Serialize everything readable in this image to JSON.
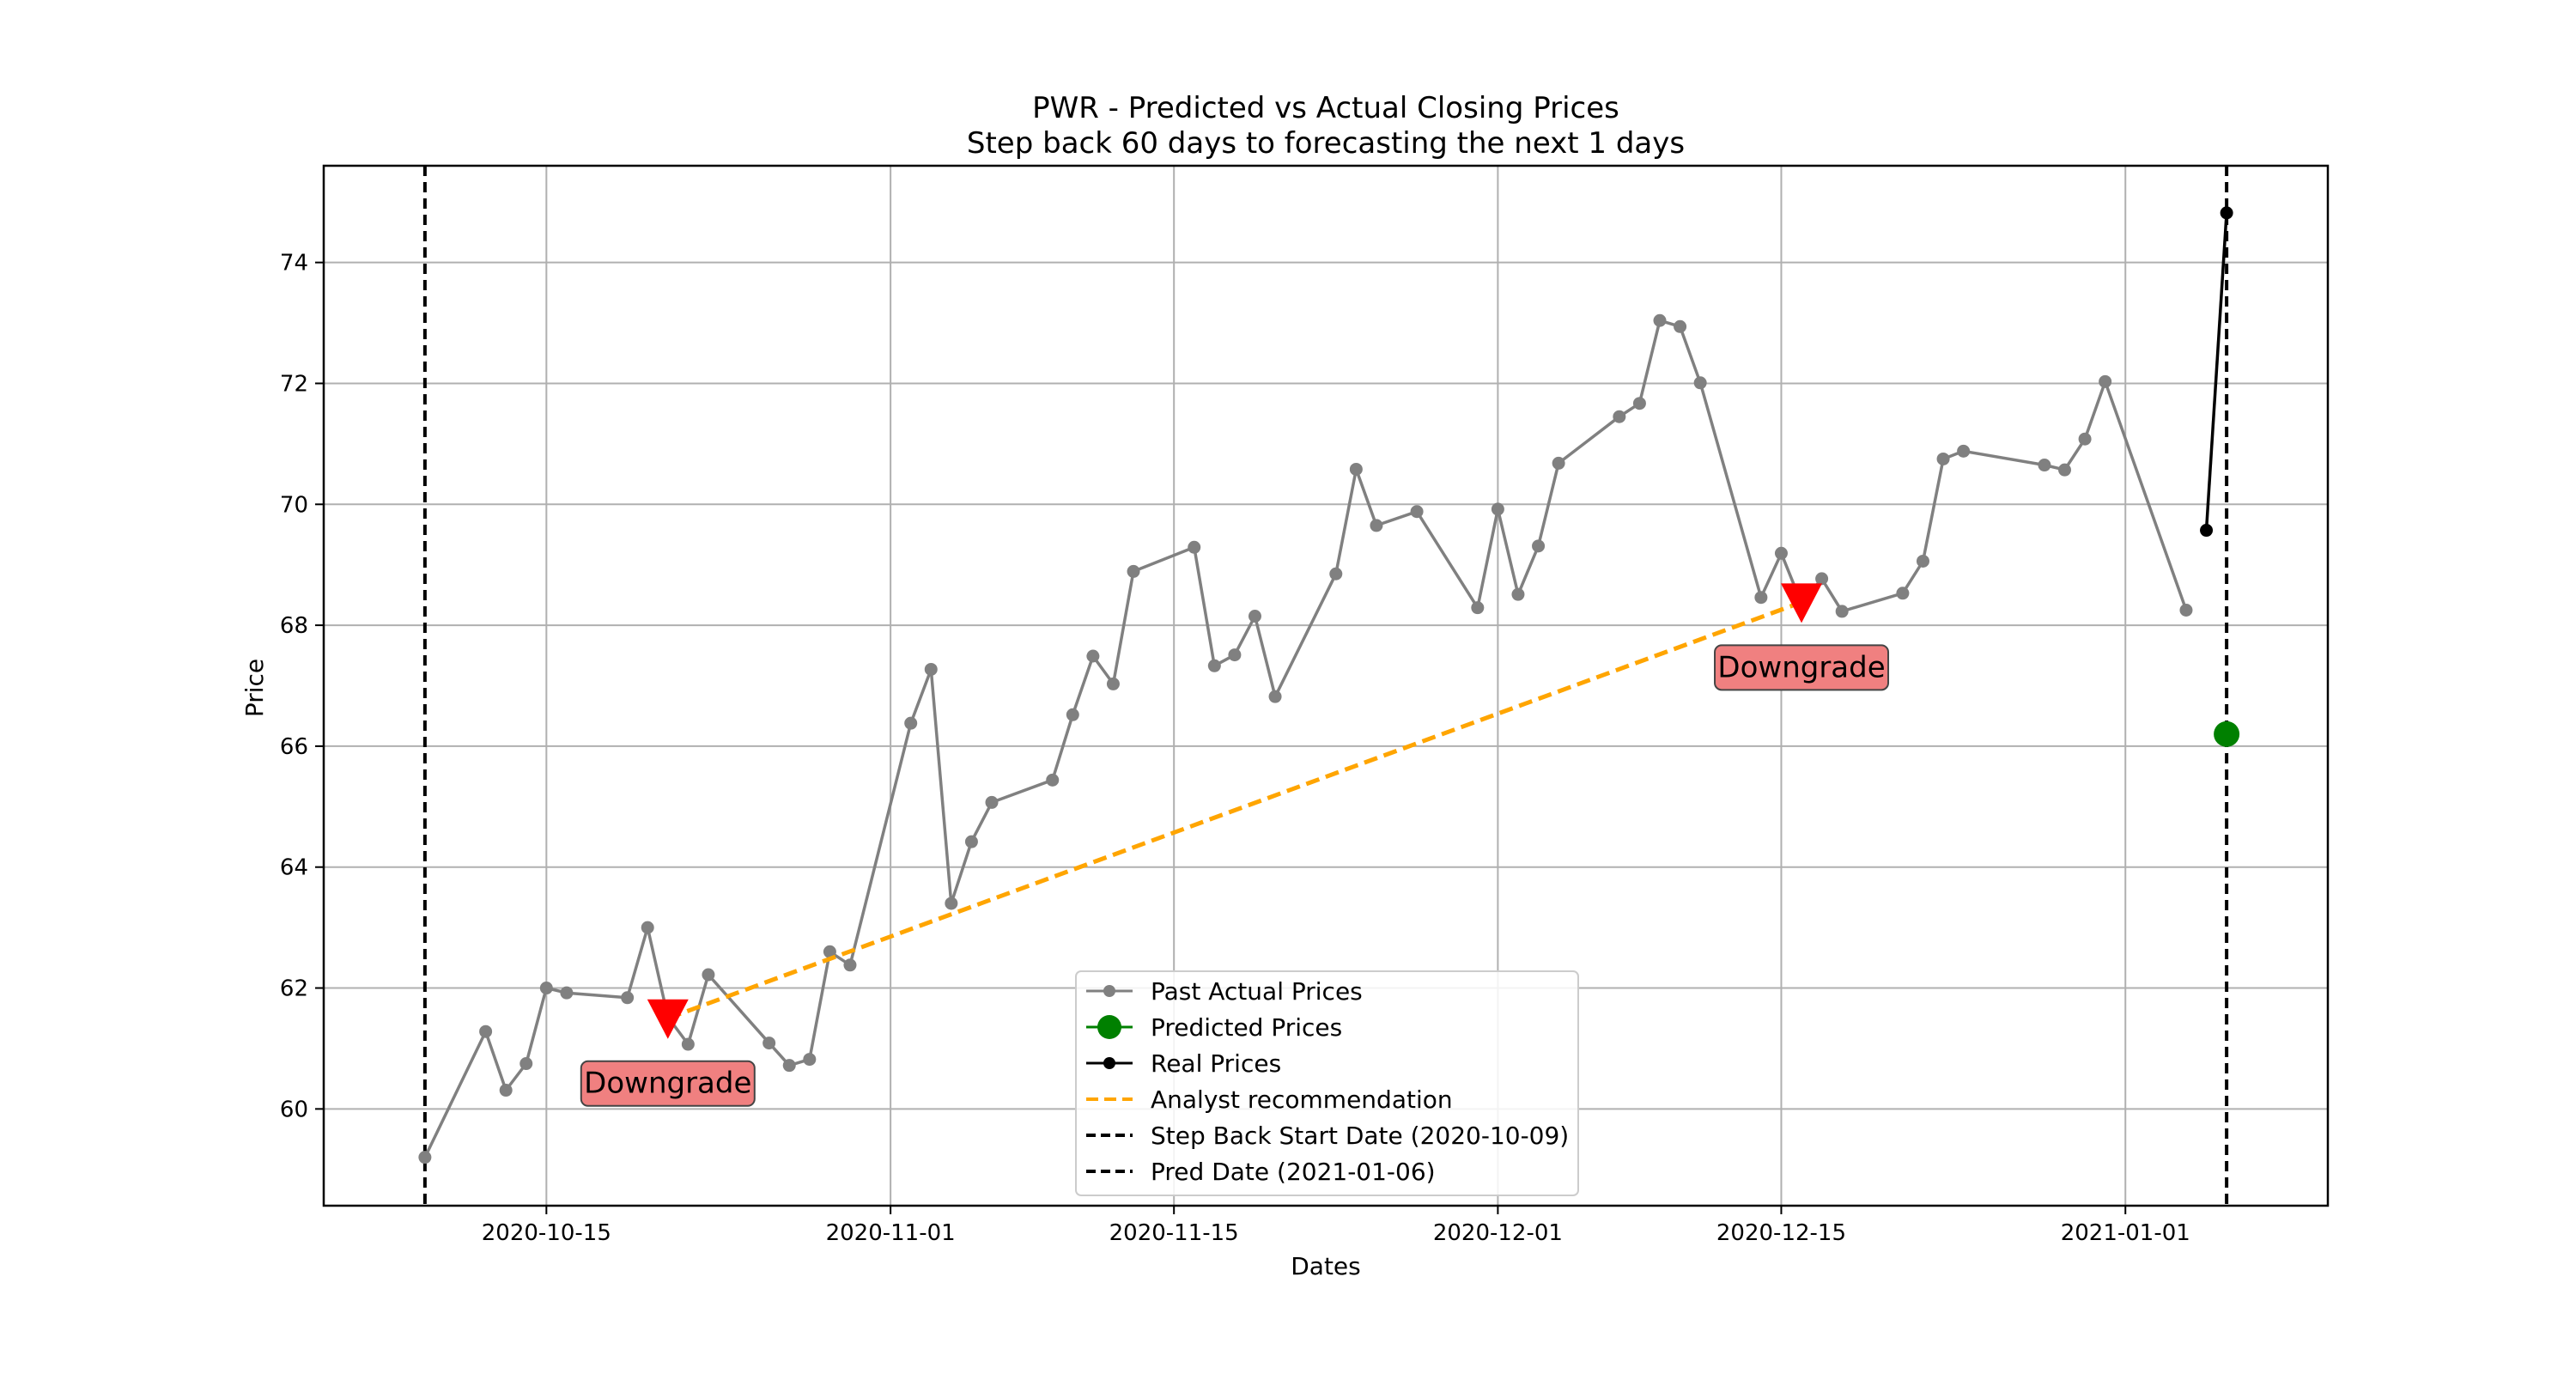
{
  "chart_data": {
    "type": "line",
    "title": "PWR - Predicted vs Actual Closing Prices",
    "subtitle": "Step back 60 days to forecasting the next 1 days",
    "xlabel": "Dates",
    "ylabel": "Price",
    "xlim": [
      "2020-10-04",
      "2021-01-11"
    ],
    "ylim": [
      58.4,
      75.6
    ],
    "grid": true,
    "x_tick_labels": [
      "2020-10-15",
      "2020-11-01",
      "2020-11-15",
      "2020-12-01",
      "2020-12-15",
      "2021-01-01"
    ],
    "y_tick_labels": [
      "60",
      "62",
      "64",
      "66",
      "68",
      "70",
      "72",
      "74"
    ],
    "legend_placement": "lower-center",
    "colors": {
      "past": "#808080",
      "predicted": "#008000",
      "real": "#000000",
      "analyst": "#FFA500",
      "marker": "#FF0000",
      "annotation_bg": "#F08080"
    },
    "series": [
      {
        "name": "Past Actual Prices",
        "x": [
          "2020-10-09",
          "2020-10-12",
          "2020-10-13",
          "2020-10-14",
          "2020-10-15",
          "2020-10-16",
          "2020-10-19",
          "2020-10-20",
          "2020-10-21",
          "2020-10-22",
          "2020-10-23",
          "2020-10-26",
          "2020-10-27",
          "2020-10-28",
          "2020-10-29",
          "2020-10-30",
          "2020-11-02",
          "2020-11-03",
          "2020-11-04",
          "2020-11-05",
          "2020-11-06",
          "2020-11-09",
          "2020-11-10",
          "2020-11-11",
          "2020-11-12",
          "2020-11-13",
          "2020-11-16",
          "2020-11-17",
          "2020-11-18",
          "2020-11-19",
          "2020-11-20",
          "2020-11-23",
          "2020-11-24",
          "2020-11-25",
          "2020-11-27",
          "2020-11-30",
          "2020-12-01",
          "2020-12-02",
          "2020-12-03",
          "2020-12-04",
          "2020-12-07",
          "2020-12-08",
          "2020-12-09",
          "2020-12-10",
          "2020-12-11",
          "2020-12-14",
          "2020-12-15",
          "2020-12-16",
          "2020-12-17",
          "2020-12-18",
          "2020-12-21",
          "2020-12-22",
          "2020-12-23",
          "2020-12-24",
          "2020-12-28",
          "2020-12-29",
          "2020-12-30",
          "2020-12-31",
          "2021-01-04"
        ],
        "y": [
          59.2,
          61.28,
          60.31,
          60.75,
          62.0,
          61.92,
          61.84,
          63.0,
          61.52,
          61.07,
          62.22,
          61.09,
          60.72,
          60.82,
          62.6,
          62.38,
          66.38,
          67.27,
          63.4,
          64.42,
          65.07,
          65.44,
          66.52,
          67.49,
          67.03,
          68.89,
          69.29,
          67.33,
          67.51,
          68.15,
          66.82,
          68.85,
          70.58,
          69.65,
          69.88,
          68.29,
          69.92,
          68.51,
          69.31,
          70.68,
          71.45,
          71.67,
          73.04,
          72.94,
          72.01,
          68.46,
          69.19,
          68.36,
          68.77,
          68.23,
          68.53,
          69.06,
          70.75,
          70.88,
          70.65,
          70.57,
          71.08,
          72.03,
          68.25
        ]
      },
      {
        "name": "Predicted Prices",
        "x": [
          "2021-01-06"
        ],
        "y": [
          66.2
        ]
      },
      {
        "name": "Real Prices",
        "x": [
          "2021-01-05",
          "2021-01-06"
        ],
        "y": [
          69.57,
          74.82
        ]
      },
      {
        "name": "Analyst recommendation",
        "x": [
          "2020-10-21",
          "2020-12-16"
        ],
        "y": [
          61.5,
          68.38
        ]
      }
    ],
    "vertical_lines": [
      {
        "name": "Step Back Start Date (2020-10-09)",
        "date": "2020-10-09"
      },
      {
        "name": "Pred Date (2021-01-06)",
        "date": "2021-01-06"
      }
    ],
    "annotations": [
      {
        "text": "Downgrade",
        "date": "2020-10-21",
        "price": 61.5
      },
      {
        "text": "Downgrade",
        "date": "2020-12-16",
        "price": 68.38
      }
    ]
  }
}
